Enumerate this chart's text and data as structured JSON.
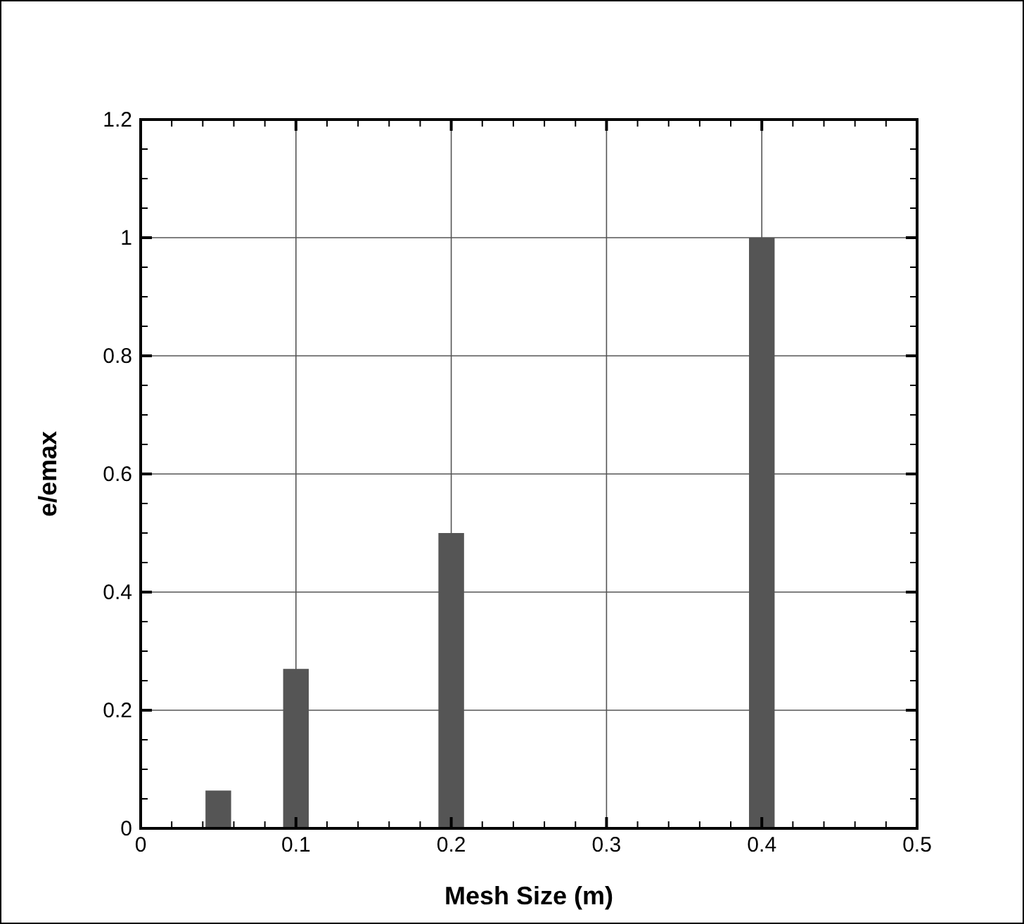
{
  "chart_data": {
    "type": "bar",
    "xlabel": "Mesh Size (m)",
    "ylabel": "e/emax",
    "x": [
      0.05,
      0.1,
      0.2,
      0.4
    ],
    "values": [
      0.064,
      0.27,
      0.5,
      1.0
    ],
    "color": "#555555",
    "xlim": [
      0,
      0.5
    ],
    "ylim": [
      0,
      1.2
    ],
    "xticks": [
      0,
      {
        "value": 0.02,
        "label": null
      },
      {
        "value": 0.04,
        "label": null
      },
      {
        "value": 0.06,
        "label": null
      },
      {
        "value": 0.08,
        "label": null
      },
      0.1,
      {
        "value": 0.12,
        "label": null
      },
      {
        "value": 0.14,
        "label": null
      },
      {
        "value": 0.16,
        "label": null
      },
      {
        "value": 0.18,
        "label": null
      },
      0.2,
      {
        "value": 0.22,
        "label": null
      },
      {
        "value": 0.24,
        "label": null
      },
      {
        "value": 0.26,
        "label": null
      },
      {
        "value": 0.28,
        "label": null
      },
      0.3,
      {
        "value": 0.32,
        "label": null
      },
      {
        "value": 0.34,
        "label": null
      },
      {
        "value": 0.36,
        "label": null
      },
      {
        "value": 0.38,
        "label": null
      },
      0.4,
      {
        "value": 0.42,
        "label": null
      },
      {
        "value": 0.44,
        "label": null
      },
      {
        "value": 0.46,
        "label": null
      },
      {
        "value": 0.48,
        "label": null
      },
      0.5
    ],
    "yticks": [
      0,
      {
        "value": 0.05,
        "label": null
      },
      {
        "value": 0.1,
        "label": null
      },
      {
        "value": 0.15,
        "label": null
      },
      0.2,
      {
        "value": 0.25,
        "label": null
      },
      {
        "value": 0.3,
        "label": null
      },
      {
        "value": 0.35,
        "label": null
      },
      0.4,
      {
        "value": 0.45,
        "label": null
      },
      {
        "value": 0.5,
        "label": null
      },
      {
        "value": 0.55,
        "label": null
      },
      0.6,
      {
        "value": 0.65,
        "label": null
      },
      {
        "value": 0.7,
        "label": null
      },
      {
        "value": 0.75,
        "label": null
      },
      0.8,
      {
        "value": 0.85,
        "label": null
      },
      {
        "value": 0.9,
        "label": null
      },
      {
        "value": 0.95,
        "label": null
      },
      1,
      {
        "value": 1.05,
        "label": null
      },
      {
        "value": 1.1,
        "label": null
      },
      {
        "value": 1.15,
        "label": null
      },
      1.2
    ],
    "grid": true
  }
}
